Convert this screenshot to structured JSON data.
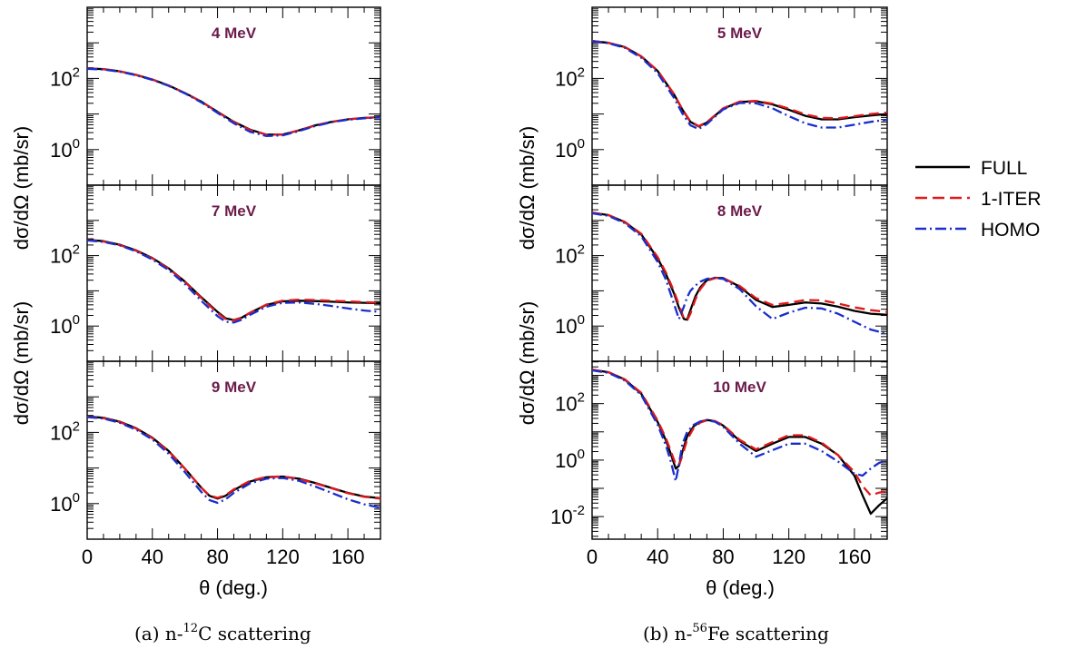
{
  "legend": [
    {
      "label": "FULL",
      "color": "#000000",
      "dash": "solid"
    },
    {
      "label": "1-ITER",
      "color": "#e0191b",
      "dash": "dashed"
    },
    {
      "label": "HOMO",
      "color": "#1a2ecc",
      "dash": "dash-dot"
    }
  ],
  "captions": [
    {
      "prefix": "(a)  n-",
      "sup": "12",
      "suffix": "C scattering"
    },
    {
      "prefix": "(b)  n-",
      "sup": "56",
      "suffix": "Fe scattering"
    }
  ],
  "y_axis_label": "dσ/dΩ (mb/sr)",
  "x_axis_label": "θ (deg.)",
  "chart_data": [
    {
      "type": "line",
      "group": "a",
      "panel": "4 MeV",
      "xlim": [
        0,
        180
      ],
      "ylog": true,
      "ylim_exp": [
        -1.0,
        4.0
      ],
      "y_tick_labels": [
        "10^0",
        "10^2"
      ],
      "x": [
        0,
        10,
        20,
        30,
        40,
        50,
        60,
        70,
        80,
        90,
        100,
        110,
        120,
        130,
        140,
        150,
        160,
        170,
        180
      ],
      "series": [
        {
          "name": "FULL",
          "log10y": [
            2.28,
            2.26,
            2.2,
            2.1,
            1.97,
            1.8,
            1.59,
            1.35,
            1.06,
            0.78,
            0.56,
            0.42,
            0.42,
            0.54,
            0.68,
            0.78,
            0.85,
            0.89,
            0.91
          ]
        },
        {
          "name": "1-ITER",
          "log10y": [
            2.28,
            2.26,
            2.2,
            2.1,
            1.97,
            1.8,
            1.59,
            1.35,
            1.05,
            0.77,
            0.55,
            0.42,
            0.42,
            0.54,
            0.68,
            0.78,
            0.85,
            0.89,
            0.91
          ]
        },
        {
          "name": "HOMO",
          "log10y": [
            2.27,
            2.25,
            2.19,
            2.09,
            1.96,
            1.79,
            1.58,
            1.33,
            1.03,
            0.74,
            0.5,
            0.38,
            0.4,
            0.52,
            0.66,
            0.77,
            0.84,
            0.88,
            0.9
          ]
        }
      ]
    },
    {
      "type": "line",
      "group": "a",
      "panel": "7 MeV",
      "xlim": [
        0,
        180
      ],
      "ylog": true,
      "ylim_exp": [
        -1.0,
        4.0
      ],
      "y_tick_labels": [
        "10^0",
        "10^2"
      ],
      "x": [
        0,
        10,
        20,
        30,
        40,
        50,
        60,
        70,
        80,
        85,
        90,
        95,
        100,
        110,
        120,
        130,
        140,
        150,
        160,
        170,
        180
      ],
      "series": [
        {
          "name": "FULL",
          "log10y": [
            2.45,
            2.41,
            2.31,
            2.15,
            1.93,
            1.64,
            1.26,
            0.82,
            0.4,
            0.22,
            0.17,
            0.24,
            0.38,
            0.6,
            0.7,
            0.72,
            0.71,
            0.69,
            0.67,
            0.66,
            0.65
          ]
        },
        {
          "name": "1-ITER",
          "log10y": [
            2.44,
            2.4,
            2.3,
            2.14,
            1.92,
            1.63,
            1.25,
            0.8,
            0.37,
            0.2,
            0.16,
            0.24,
            0.38,
            0.61,
            0.72,
            0.75,
            0.74,
            0.72,
            0.7,
            0.68,
            0.66
          ]
        },
        {
          "name": "HOMO",
          "log10y": [
            2.43,
            2.39,
            2.29,
            2.12,
            1.89,
            1.59,
            1.19,
            0.72,
            0.28,
            0.12,
            0.1,
            0.18,
            0.32,
            0.55,
            0.66,
            0.67,
            0.63,
            0.57,
            0.5,
            0.44,
            0.4
          ]
        }
      ]
    },
    {
      "type": "line",
      "group": "a",
      "panel": "9 MeV",
      "xlim": [
        0,
        180
      ],
      "ylog": true,
      "ylim_exp": [
        -1.0,
        4.0
      ],
      "y_tick_labels": [
        "10^0",
        "10^2"
      ],
      "x": [
        0,
        10,
        20,
        30,
        40,
        50,
        60,
        70,
        75,
        80,
        85,
        90,
        100,
        110,
        120,
        130,
        140,
        150,
        160,
        170,
        180
      ],
      "series": [
        {
          "name": "FULL",
          "log10y": [
            2.45,
            2.41,
            2.3,
            2.12,
            1.85,
            1.48,
            0.98,
            0.45,
            0.22,
            0.14,
            0.22,
            0.38,
            0.62,
            0.74,
            0.76,
            0.7,
            0.58,
            0.44,
            0.3,
            0.2,
            0.15
          ]
        },
        {
          "name": "1-ITER",
          "log10y": [
            2.44,
            2.4,
            2.29,
            2.11,
            1.84,
            1.47,
            0.98,
            0.45,
            0.23,
            0.16,
            0.24,
            0.4,
            0.64,
            0.75,
            0.76,
            0.69,
            0.57,
            0.43,
            0.29,
            0.19,
            0.14
          ]
        },
        {
          "name": "HOMO",
          "log10y": [
            2.43,
            2.39,
            2.27,
            2.08,
            1.8,
            1.4,
            0.88,
            0.33,
            0.1,
            0.02,
            0.12,
            0.3,
            0.57,
            0.7,
            0.72,
            0.64,
            0.48,
            0.3,
            0.12,
            -0.02,
            -0.12
          ]
        }
      ]
    },
    {
      "type": "line",
      "group": "b",
      "panel": "5 MeV",
      "xlim": [
        0,
        180
      ],
      "ylog": true,
      "ylim_exp": [
        -1.0,
        4.0
      ],
      "y_tick_labels": [
        "10^0",
        "10^2"
      ],
      "x": [
        0,
        10,
        20,
        30,
        40,
        50,
        55,
        60,
        65,
        70,
        80,
        90,
        100,
        110,
        120,
        130,
        140,
        150,
        160,
        170,
        180
      ],
      "series": [
        {
          "name": "FULL",
          "log10y": [
            3.05,
            3.0,
            2.88,
            2.62,
            2.21,
            1.55,
            1.13,
            0.78,
            0.65,
            0.76,
            1.15,
            1.34,
            1.36,
            1.27,
            1.12,
            0.95,
            0.85,
            0.85,
            0.91,
            0.96,
            1.0
          ]
        },
        {
          "name": "1-ITER",
          "log10y": [
            3.05,
            3.0,
            2.88,
            2.62,
            2.22,
            1.56,
            1.14,
            0.79,
            0.66,
            0.77,
            1.16,
            1.35,
            1.37,
            1.29,
            1.15,
            0.99,
            0.89,
            0.88,
            0.94,
            1.0,
            1.04
          ]
        },
        {
          "name": "HOMO",
          "log10y": [
            3.04,
            2.99,
            2.86,
            2.58,
            2.15,
            1.45,
            1.02,
            0.68,
            0.58,
            0.72,
            1.13,
            1.31,
            1.3,
            1.16,
            0.94,
            0.74,
            0.62,
            0.62,
            0.7,
            0.78,
            0.84
          ]
        }
      ]
    },
    {
      "type": "line",
      "group": "b",
      "panel": "8 MeV",
      "xlim": [
        0,
        180
      ],
      "ylog": true,
      "ylim_exp": [
        -1.0,
        4.0
      ],
      "y_tick_labels": [
        "10^0",
        "10^2"
      ],
      "x": [
        0,
        10,
        20,
        30,
        40,
        45,
        50,
        53,
        56,
        58,
        60,
        63,
        66,
        70,
        75,
        80,
        90,
        100,
        110,
        120,
        130,
        140,
        150,
        160,
        170,
        180
      ],
      "series": [
        {
          "name": "FULL",
          "log10y": [
            3.22,
            3.15,
            2.95,
            2.6,
            1.92,
            1.48,
            0.92,
            0.52,
            0.2,
            0.18,
            0.45,
            0.84,
            1.1,
            1.3,
            1.37,
            1.36,
            1.12,
            0.74,
            0.54,
            0.6,
            0.67,
            0.64,
            0.55,
            0.43,
            0.35,
            0.32
          ]
        },
        {
          "name": "1-ITER",
          "log10y": [
            3.22,
            3.15,
            2.96,
            2.62,
            1.96,
            1.52,
            0.98,
            0.6,
            0.22,
            0.16,
            0.35,
            0.76,
            1.05,
            1.28,
            1.36,
            1.36,
            1.14,
            0.79,
            0.6,
            0.66,
            0.74,
            0.73,
            0.64,
            0.53,
            0.45,
            0.4
          ]
        },
        {
          "name": "HOMO",
          "log10y": [
            3.2,
            3.13,
            2.92,
            2.55,
            1.82,
            1.32,
            0.62,
            0.2,
            0.55,
            0.82,
            1.0,
            1.15,
            1.26,
            1.34,
            1.36,
            1.34,
            1.05,
            0.56,
            0.2,
            0.38,
            0.52,
            0.5,
            0.35,
            0.12,
            -0.1,
            -0.22
          ]
        }
      ]
    },
    {
      "type": "line",
      "group": "b",
      "panel": "10 MeV",
      "xlim": [
        0,
        180
      ],
      "ylog": true,
      "ylim_exp": [
        -2.8,
        3.5
      ],
      "y_tick_labels": [
        "10^-2",
        "10^0",
        "10^2"
      ],
      "x": [
        0,
        10,
        20,
        30,
        40,
        45,
        48,
        51,
        53,
        55,
        58,
        62,
        66,
        70,
        75,
        80,
        90,
        100,
        110,
        120,
        130,
        140,
        150,
        160,
        165,
        170,
        175,
        180
      ],
      "series": [
        {
          "name": "FULL",
          "log10y": [
            3.2,
            3.11,
            2.85,
            2.35,
            1.35,
            0.7,
            0.22,
            -0.3,
            -0.2,
            0.28,
            0.84,
            1.2,
            1.36,
            1.42,
            1.38,
            1.22,
            0.68,
            0.32,
            0.58,
            0.82,
            0.82,
            0.58,
            0.18,
            -0.55,
            -1.25,
            -1.9,
            -1.6,
            -1.35
          ]
        },
        {
          "name": "1-ITER",
          "log10y": [
            3.2,
            3.11,
            2.86,
            2.38,
            1.4,
            0.78,
            0.32,
            -0.15,
            -0.2,
            0.15,
            0.72,
            1.14,
            1.33,
            1.41,
            1.38,
            1.24,
            0.72,
            0.38,
            0.64,
            0.88,
            0.88,
            0.62,
            0.18,
            -0.42,
            -0.92,
            -1.25,
            -1.15,
            -1.1
          ]
        },
        {
          "name": "HOMO",
          "log10y": [
            3.18,
            3.09,
            2.82,
            2.3,
            1.25,
            0.52,
            -0.05,
            -0.75,
            -0.15,
            0.55,
            1.0,
            1.25,
            1.37,
            1.41,
            1.36,
            1.18,
            0.58,
            0.12,
            0.35,
            0.58,
            0.58,
            0.32,
            -0.05,
            -0.48,
            -0.55,
            -0.3,
            -0.1,
            0.0
          ]
        }
      ]
    }
  ]
}
